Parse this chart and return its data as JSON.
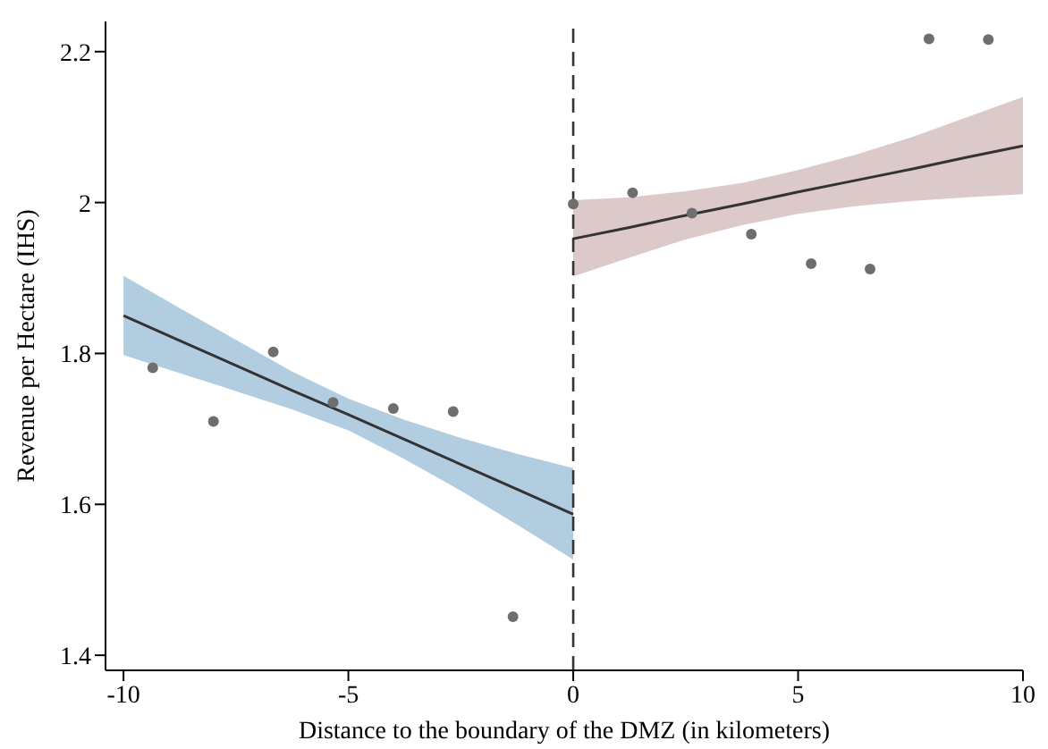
{
  "chart_data": {
    "type": "scatter",
    "xlabel": "Distance to the boundary of the DMZ (in kilometers)",
    "ylabel": "Revenue per Hectare (IHS)",
    "xlim": [
      -10.4,
      10
    ],
    "xticks": [
      -10,
      -5,
      0,
      5,
      10
    ],
    "ylim": [
      1.38,
      2.24
    ],
    "yticks": [
      1.4,
      1.6,
      1.8,
      2,
      2.2
    ],
    "grid": false,
    "legend": false,
    "series": [
      {
        "color": "#6e6e6e",
        "marker": "circle",
        "x": [
          -9.35,
          -8,
          -6.67,
          -5.34,
          -4,
          -2.67,
          -1.34,
          0,
          1.32,
          2.64,
          3.96,
          5.29,
          6.6,
          7.91,
          9.23
        ],
        "values": [
          1.781,
          1.71,
          1.802,
          1.735,
          1.727,
          1.723,
          1.451,
          1.998,
          2.013,
          1.986,
          1.958,
          1.919,
          1.912,
          2.217,
          2.216
        ]
      },
      {
        "type": "line",
        "color": "#333333",
        "marker": "none",
        "x": [
          -10,
          -8.75,
          -7.5,
          -6.25,
          -5,
          -3.75,
          -2.5,
          -1.25,
          0
        ],
        "values": [
          1.85,
          1.817,
          1.784,
          1.751,
          1.719,
          1.686,
          1.653,
          1.62,
          1.587
        ],
        "lower": [
          1.798,
          1.774,
          1.75,
          1.726,
          1.698,
          1.66,
          1.618,
          1.573,
          1.527
        ],
        "upper": [
          1.903,
          1.86,
          1.818,
          1.776,
          1.74,
          1.712,
          1.688,
          1.667,
          1.648
        ]
      },
      {
        "type": "line",
        "color": "#333333",
        "marker": "none",
        "x": [
          0,
          1.25,
          2.5,
          3.75,
          5,
          6.25,
          7.5,
          8.75,
          10
        ],
        "values": [
          1.952,
          1.967,
          1.983,
          1.998,
          2.014,
          2.029,
          2.044,
          2.06,
          2.075
        ],
        "lower": [
          1.902,
          1.927,
          1.951,
          1.97,
          1.985,
          1.995,
          2.002,
          2.007,
          2.011
        ],
        "upper": [
          2.003,
          2.007,
          2.015,
          2.026,
          2.043,
          2.063,
          2.086,
          2.113,
          2.14
        ]
      }
    ],
    "ref_lines": [
      {
        "axis": "x",
        "value": 0,
        "color": "#333333",
        "line_style": "dashed"
      }
    ]
  }
}
